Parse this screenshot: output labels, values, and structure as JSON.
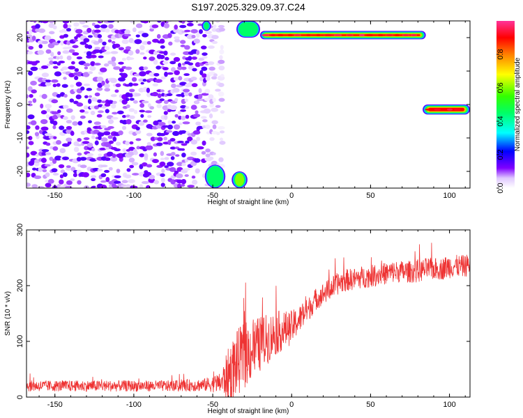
{
  "title": "S197.2025.329.09.37.C24",
  "chart_data": [
    {
      "type": "heatmap",
      "xlabel": "Height of straight line (km)",
      "ylabel": "Frequency (Hz)",
      "xlim": [
        -168,
        113
      ],
      "ylim": [
        -25,
        25
      ],
      "xticks": [
        -150,
        -100,
        -50,
        0,
        50,
        100
      ],
      "yticks": [
        -20,
        -10,
        0,
        10,
        20
      ],
      "colorbar": {
        "label": "Normalized spectral amplitude",
        "range": [
          0,
          1
        ],
        "ticks": [
          0.0,
          0.2,
          0.4,
          0.6,
          0.8
        ]
      },
      "features": [
        {
          "x_range": [
            -168,
            -55
          ],
          "y_range": [
            -25,
            25
          ],
          "amplitude": 0.1
        },
        {
          "x_range": [
            -55,
            -43
          ],
          "y_range": [
            -25,
            25
          ],
          "amplitude": 0.05
        },
        {
          "x_range": [
            -57,
            -51
          ],
          "y_range": [
            22,
            25
          ],
          "amplitude": 0.55
        },
        {
          "x_range": [
            -55,
            -42
          ],
          "y_range": [
            -25,
            -18
          ],
          "amplitude": 0.45
        },
        {
          "x_range": [
            -38,
            -28
          ],
          "y_range": [
            -25,
            -20
          ],
          "amplitude": 0.6
        },
        {
          "x_range": [
            -35,
            -20
          ],
          "y_range": [
            20,
            25
          ],
          "amplitude": 0.5
        },
        {
          "x_range": [
            -20,
            85
          ],
          "y_range": [
            19.5,
            22
          ],
          "amplitude": 0.95
        },
        {
          "x_range": [
            83,
            113
          ],
          "y_range": [
            -3,
            0
          ],
          "amplitude": 0.9
        }
      ]
    },
    {
      "type": "line",
      "xlabel": "Height of straight line (km)",
      "ylabel": "SNR (10 * v/v)",
      "xlim": [
        -168,
        113
      ],
      "ylim": [
        0,
        300
      ],
      "xticks": [
        -150,
        -100,
        -50,
        0,
        50,
        100
      ],
      "yticks": [
        0,
        100,
        200,
        300
      ],
      "series": [
        {
          "color": "#ee3333",
          "x": [
            -168,
            -150,
            -125,
            -100,
            -75,
            -55,
            -45,
            -40,
            -35,
            -30,
            -25,
            -20,
            -15,
            -10,
            -5,
            0,
            5,
            10,
            15,
            20,
            25,
            30,
            35,
            40,
            45,
            50,
            55,
            60,
            65,
            70,
            75,
            80,
            85,
            90,
            95,
            100,
            105,
            110,
            113
          ],
          "values": [
            20,
            20,
            20,
            20,
            20,
            22,
            25,
            40,
            60,
            75,
            85,
            95,
            105,
            115,
            120,
            125,
            140,
            155,
            175,
            185,
            195,
            205,
            210,
            212,
            215,
            217,
            220,
            222,
            225,
            225,
            225,
            225,
            230,
            230,
            230,
            235,
            235,
            235,
            240
          ],
          "noise_amplitude": [
            10,
            10,
            10,
            10,
            10,
            12,
            18,
            50,
            60,
            60,
            55,
            50,
            45,
            40,
            35,
            30,
            25,
            22,
            20,
            20,
            20,
            20,
            20,
            20,
            20,
            20,
            20,
            20,
            20,
            20,
            20,
            20,
            20,
            20,
            20,
            22,
            20,
            20,
            20
          ]
        }
      ]
    }
  ]
}
